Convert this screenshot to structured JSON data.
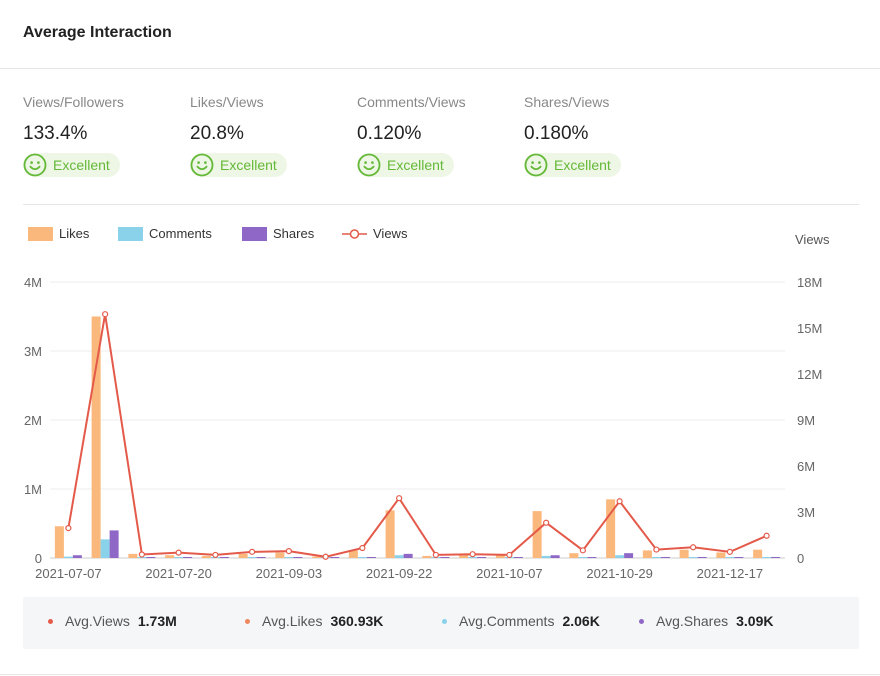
{
  "header": {
    "title": "Average Interaction"
  },
  "metrics": [
    {
      "label": "Views/Followers",
      "value": "133.4%",
      "badge": "Excellent"
    },
    {
      "label": "Likes/Views",
      "value": "20.8%",
      "badge": "Excellent"
    },
    {
      "label": "Comments/Views",
      "value": "0.120%",
      "badge": "Excellent"
    },
    {
      "label": "Shares/Views",
      "value": "0.180%",
      "badge": "Excellent"
    }
  ],
  "colors": {
    "likes": "#fbb87c",
    "comments": "#8ad2ea",
    "shares": "#8f67c6",
    "views": "#e45a4a",
    "excellent": "#64b837"
  },
  "legend": {
    "likes": "Likes",
    "comments": "Comments",
    "shares": "Shares",
    "views": "Views"
  },
  "chart_data": {
    "type": "bar",
    "title": "",
    "y_axis_left": {
      "ticks": [
        "0",
        "1M",
        "2M",
        "3M",
        "4M"
      ],
      "range": [
        0,
        4000000
      ]
    },
    "y_axis_right": {
      "label": "Views",
      "ticks": [
        "0",
        "3M",
        "6M",
        "9M",
        "12M",
        "15M",
        "18M"
      ],
      "range": [
        0,
        18000000
      ]
    },
    "x_tick_labels": [
      "2021-07-07",
      "2021-07-20",
      "2021-09-03",
      "2021-09-22",
      "2021-10-07",
      "2021-10-29",
      "2021-12-17"
    ],
    "series": [
      {
        "name": "Likes",
        "type": "bar",
        "values": [
          460000,
          3500000,
          60000,
          40000,
          30000,
          60000,
          80000,
          20000,
          110000,
          690000,
          30000,
          50000,
          50000,
          680000,
          70000,
          850000,
          110000,
          120000,
          80000,
          120000
        ]
      },
      {
        "name": "Comments",
        "type": "bar",
        "values": [
          20000,
          270000,
          5000,
          5000,
          3000,
          5000,
          5000,
          2000,
          10000,
          40000,
          3000,
          5000,
          5000,
          30000,
          5000,
          40000,
          10000,
          10000,
          5000,
          8000
        ]
      },
      {
        "name": "Shares",
        "type": "bar",
        "values": [
          40000,
          400000,
          8000,
          6000,
          5000,
          8000,
          8000,
          3000,
          15000,
          60000,
          5000,
          8000,
          8000,
          40000,
          8000,
          70000,
          15000,
          15000,
          10000,
          15000
        ]
      },
      {
        "name": "Views",
        "type": "line",
        "axis": "right",
        "values": [
          1950000,
          15900000,
          230000,
          350000,
          200000,
          400000,
          450000,
          80000,
          650000,
          3900000,
          200000,
          250000,
          200000,
          2300000,
          500000,
          3700000,
          550000,
          700000,
          400000,
          1450000
        ]
      }
    ]
  },
  "footer": {
    "avg_views_label": "Avg.Views",
    "avg_views": "1.73M",
    "avg_likes_label": "Avg.Likes",
    "avg_likes": "360.93K",
    "avg_comments_label": "Avg.Comments",
    "avg_comments": "2.06K",
    "avg_shares_label": "Avg.Shares",
    "avg_shares": "3.09K"
  }
}
